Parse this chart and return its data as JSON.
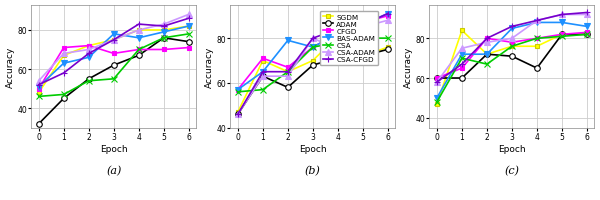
{
  "epochs": [
    0,
    1,
    2,
    3,
    4,
    5,
    6
  ],
  "subplot_labels": [
    "(a)",
    "(b)",
    "(c)"
  ],
  "series": {
    "SGDM": {
      "color": "#ffff00",
      "marker": "s",
      "ms": 3.5,
      "lw": 1.2,
      "mec": "#cccc00",
      "mfc": "#ffff00"
    },
    "ADAM": {
      "color": "#000000",
      "marker": "o",
      "ms": 4.0,
      "lw": 1.2,
      "mec": "#000000",
      "mfc": "#ffffff"
    },
    "CFGD": {
      "color": "#ff00ff",
      "marker": "s",
      "ms": 3.5,
      "lw": 1.2,
      "mec": "#ff00ff",
      "mfc": "#ff00ff"
    },
    "BAS-ADAM": {
      "color": "#1e90ff",
      "marker": "v",
      "ms": 4.5,
      "lw": 1.2,
      "mec": "#1e90ff",
      "mfc": "#1e90ff"
    },
    "CSA": {
      "color": "#00cc00",
      "marker": "x",
      "ms": 4.5,
      "lw": 1.2,
      "mec": "#00cc00",
      "mfc": "#00cc00"
    },
    "CSA-ADAM": {
      "color": "#cc99ff",
      "marker": "^",
      "ms": 4.0,
      "lw": 1.2,
      "mec": "#cc99ff",
      "mfc": "#cc99ff"
    },
    "CSA-CFGD": {
      "color": "#7700cc",
      "marker": "+",
      "ms": 4.5,
      "lw": 1.2,
      "mec": "#7700cc",
      "mfc": "#7700cc"
    }
  },
  "data_a": {
    "SGDM": [
      48,
      67,
      72,
      75,
      80,
      80,
      82
    ],
    "ADAM": [
      32,
      45,
      55,
      62,
      67,
      76,
      74
    ],
    "CFGD": [
      50,
      71,
      72,
      68,
      70,
      70,
      71
    ],
    "BAS-ADAM": [
      51,
      63,
      66,
      78,
      76,
      79,
      82
    ],
    "CSA": [
      46,
      47,
      54,
      55,
      70,
      76,
      78
    ],
    "CSA-ADAM": [
      54,
      68,
      70,
      75,
      80,
      83,
      88
    ],
    "CSA-CFGD": [
      52,
      58,
      68,
      75,
      83,
      82,
      86
    ]
  },
  "data_b": {
    "SGDM": [
      47,
      70,
      65,
      70,
      81,
      72,
      76
    ],
    "ADAM": [
      46,
      63,
      58,
      68,
      71,
      72,
      75
    ],
    "CFGD": [
      57,
      71,
      67,
      76,
      82,
      87,
      90
    ],
    "BAS-ADAM": [
      57,
      65,
      79,
      76,
      82,
      86,
      91
    ],
    "CSA": [
      56,
      57,
      65,
      76,
      78,
      80,
      80
    ],
    "CSA-ADAM": [
      46,
      63,
      63,
      80,
      75,
      85,
      88
    ],
    "CSA-CFGD": [
      46,
      65,
      65,
      80,
      84,
      86,
      91
    ]
  },
  "data_c": {
    "SGDM": [
      47,
      84,
      72,
      76,
      76,
      82,
      82
    ],
    "ADAM": [
      60,
      60,
      72,
      71,
      65,
      82,
      82
    ],
    "CFGD": [
      60,
      65,
      80,
      78,
      80,
      82,
      83
    ],
    "BAS-ADAM": [
      50,
      72,
      72,
      85,
      88,
      88,
      86
    ],
    "CSA": [
      48,
      70,
      67,
      76,
      80,
      81,
      82
    ],
    "CSA-ADAM": [
      58,
      75,
      78,
      80,
      89,
      92,
      92
    ],
    "CSA-CFGD": [
      58,
      67,
      80,
      86,
      89,
      92,
      93
    ]
  },
  "ylim_a": [
    30,
    93
  ],
  "ylim_b": [
    40,
    95
  ],
  "ylim_c": [
    35,
    97
  ],
  "yticks": [
    40,
    60,
    80
  ],
  "xlim": [
    -0.3,
    6.3
  ],
  "legend_order": [
    "SGDM",
    "ADAM",
    "CFGD",
    "BAS-ADAM",
    "CSA",
    "CSA-ADAM",
    "CSA-CFGD"
  ],
  "bg_color": "#ffffff",
  "grid_color": "#cccccc"
}
